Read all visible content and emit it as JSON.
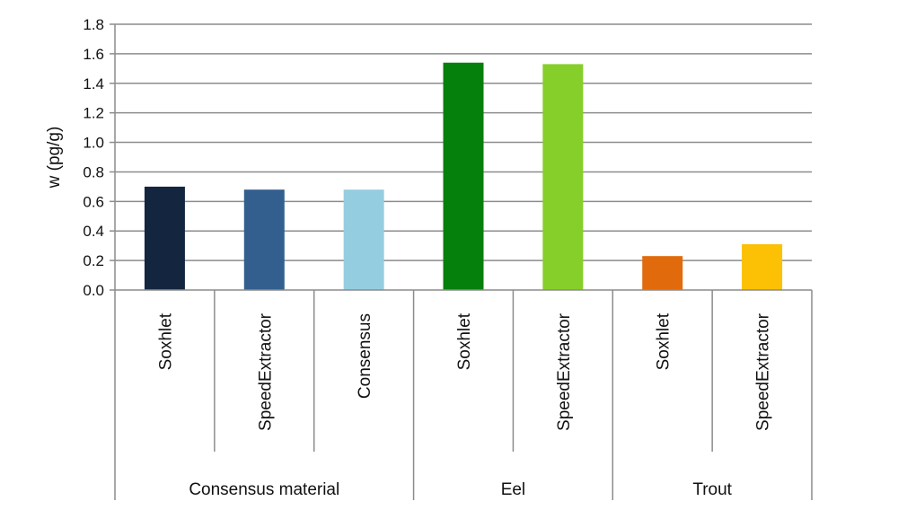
{
  "chart_data": {
    "type": "bar",
    "ylabel": "w (pg/g)",
    "ylim": [
      0,
      1.8
    ],
    "yticks": [
      "0.0",
      "0.2",
      "0.4",
      "0.6",
      "0.8",
      "1.0",
      "1.2",
      "1.4",
      "1.6",
      "1.8"
    ],
    "grid": true,
    "groups": [
      "Consensus material",
      "Eel",
      "Trout"
    ],
    "categories": [
      {
        "label": "Soxhlet",
        "group": "Consensus material"
      },
      {
        "label": "SpeedExtractor",
        "group": "Consensus material"
      },
      {
        "label": "Consensus",
        "group": "Consensus material"
      },
      {
        "label": "Soxhlet",
        "group": "Eel"
      },
      {
        "label": "SpeedExtractor",
        "group": "Eel"
      },
      {
        "label": "Soxhlet",
        "group": "Trout"
      },
      {
        "label": "SpeedExtractor",
        "group": "Trout"
      }
    ],
    "values": [
      0.7,
      0.68,
      0.68,
      1.54,
      1.53,
      0.23,
      0.31
    ],
    "colors": [
      "#14263f",
      "#335f8f",
      "#95cde0",
      "#05800d",
      "#86ce29",
      "#e16b0c",
      "#fcc004"
    ]
  }
}
